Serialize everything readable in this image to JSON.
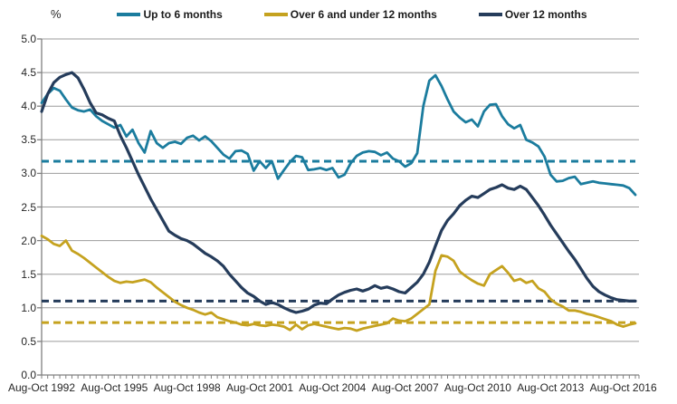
{
  "page": {
    "background": "#ffffff"
  },
  "colors": {
    "teal": "#1B7C9E",
    "gold": "#C5A21F",
    "navy": "#253C5B",
    "gridline": "#9B9B9B",
    "axis": "#808080",
    "text": "#262626"
  },
  "chart_data": {
    "type": "line",
    "title": "",
    "unit_label": "%",
    "xlabel": "",
    "ylabel": "%",
    "ylim": [
      0,
      5
    ],
    "ytick_step": 0.5,
    "grid": "horizontal",
    "legend_position": "top",
    "n_points": 99,
    "points_per_label": 12,
    "x_tick_labels": [
      "Aug-Oct 1992",
      "Aug-Oct 1995",
      "Aug-Oct 1998",
      "Aug-Oct 2001",
      "Aug-Oct 2004",
      "Aug-Oct 2007",
      "Aug-Oct 2010",
      "Aug-Oct 2013",
      "Aug-Oct 2016"
    ],
    "y_tick_labels": [
      "0.0",
      "0.5",
      "1.0",
      "1.5",
      "2.0",
      "2.5",
      "3.0",
      "3.5",
      "4.0",
      "4.5",
      "5.0"
    ],
    "series": [
      {
        "name": "Up to 6 months",
        "color": "#1B7C9E",
        "style": "solid",
        "values": [
          4.05,
          4.18,
          4.27,
          4.23,
          4.1,
          3.98,
          3.94,
          3.92,
          3.95,
          3.85,
          3.78,
          3.73,
          3.68,
          3.72,
          3.55,
          3.65,
          3.45,
          3.31,
          3.63,
          3.45,
          3.38,
          3.45,
          3.47,
          3.44,
          3.53,
          3.56,
          3.49,
          3.55,
          3.48,
          3.38,
          3.28,
          3.22,
          3.33,
          3.34,
          3.29,
          3.04,
          3.18,
          3.08,
          3.18,
          2.92,
          3.05,
          3.17,
          3.26,
          3.24,
          3.05,
          3.06,
          3.08,
          3.05,
          3.08,
          2.94,
          2.98,
          3.15,
          3.26,
          3.31,
          3.33,
          3.32,
          3.27,
          3.31,
          3.22,
          3.18,
          3.1,
          3.15,
          3.3,
          4.0,
          4.38,
          4.46,
          4.3,
          4.1,
          3.92,
          3.83,
          3.76,
          3.8,
          3.7,
          3.92,
          4.02,
          4.03,
          3.85,
          3.73,
          3.67,
          3.72,
          3.5,
          3.46,
          3.4,
          3.25,
          2.98,
          2.88,
          2.89,
          2.93,
          2.95,
          2.84,
          2.86,
          2.88,
          2.86,
          2.85,
          2.84,
          2.83,
          2.82,
          2.78,
          2.68
        ]
      },
      {
        "name": "Over 6 and under 12 months",
        "color": "#C5A21F",
        "style": "solid",
        "values": [
          2.07,
          2.02,
          1.95,
          1.92,
          2.0,
          1.85,
          1.8,
          1.74,
          1.67,
          1.6,
          1.53,
          1.46,
          1.4,
          1.37,
          1.39,
          1.38,
          1.4,
          1.42,
          1.38,
          1.3,
          1.23,
          1.16,
          1.09,
          1.04,
          1.0,
          0.97,
          0.93,
          0.9,
          0.93,
          0.86,
          0.83,
          0.8,
          0.78,
          0.75,
          0.74,
          0.76,
          0.74,
          0.73,
          0.75,
          0.74,
          0.72,
          0.67,
          0.75,
          0.68,
          0.74,
          0.76,
          0.74,
          0.72,
          0.7,
          0.68,
          0.7,
          0.69,
          0.66,
          0.69,
          0.71,
          0.73,
          0.75,
          0.77,
          0.84,
          0.81,
          0.8,
          0.84,
          0.91,
          0.98,
          1.05,
          1.55,
          1.78,
          1.76,
          1.7,
          1.54,
          1.47,
          1.41,
          1.36,
          1.33,
          1.5,
          1.56,
          1.62,
          1.52,
          1.4,
          1.43,
          1.37,
          1.4,
          1.29,
          1.24,
          1.13,
          1.06,
          1.02,
          0.96,
          0.96,
          0.94,
          0.91,
          0.89,
          0.86,
          0.83,
          0.8,
          0.75,
          0.72,
          0.75,
          0.77
        ]
      },
      {
        "name": "Over 12 months",
        "color": "#253C5B",
        "style": "solid",
        "values": [
          3.92,
          4.18,
          4.35,
          4.43,
          4.47,
          4.5,
          4.42,
          4.25,
          4.05,
          3.9,
          3.87,
          3.82,
          3.78,
          3.56,
          3.38,
          3.18,
          2.98,
          2.8,
          2.62,
          2.46,
          2.3,
          2.14,
          2.08,
          2.03,
          2.0,
          1.95,
          1.88,
          1.81,
          1.76,
          1.7,
          1.62,
          1.5,
          1.4,
          1.3,
          1.22,
          1.17,
          1.1,
          1.05,
          1.08,
          1.05,
          1.0,
          0.96,
          0.93,
          0.95,
          0.98,
          1.04,
          1.07,
          1.06,
          1.13,
          1.19,
          1.23,
          1.26,
          1.28,
          1.25,
          1.28,
          1.33,
          1.29,
          1.31,
          1.28,
          1.24,
          1.22,
          1.3,
          1.38,
          1.5,
          1.68,
          1.92,
          2.15,
          2.3,
          2.4,
          2.52,
          2.6,
          2.66,
          2.64,
          2.7,
          2.76,
          2.79,
          2.83,
          2.78,
          2.76,
          2.81,
          2.76,
          2.64,
          2.52,
          2.38,
          2.23,
          2.1,
          1.97,
          1.84,
          1.72,
          1.58,
          1.44,
          1.32,
          1.24,
          1.19,
          1.15,
          1.12,
          1.11,
          1.1,
          1.1
        ]
      }
    ],
    "reference_lines": [
      {
        "label": "Up to 6 months average",
        "value": 3.18,
        "color": "#1B7C9E",
        "style": "dashed"
      },
      {
        "label": "Over 12 months average",
        "value": 1.1,
        "color": "#253C5B",
        "style": "dashed"
      },
      {
        "label": "Over 6 and under 12 months average",
        "value": 0.78,
        "color": "#C5A21F",
        "style": "dashed"
      }
    ]
  }
}
